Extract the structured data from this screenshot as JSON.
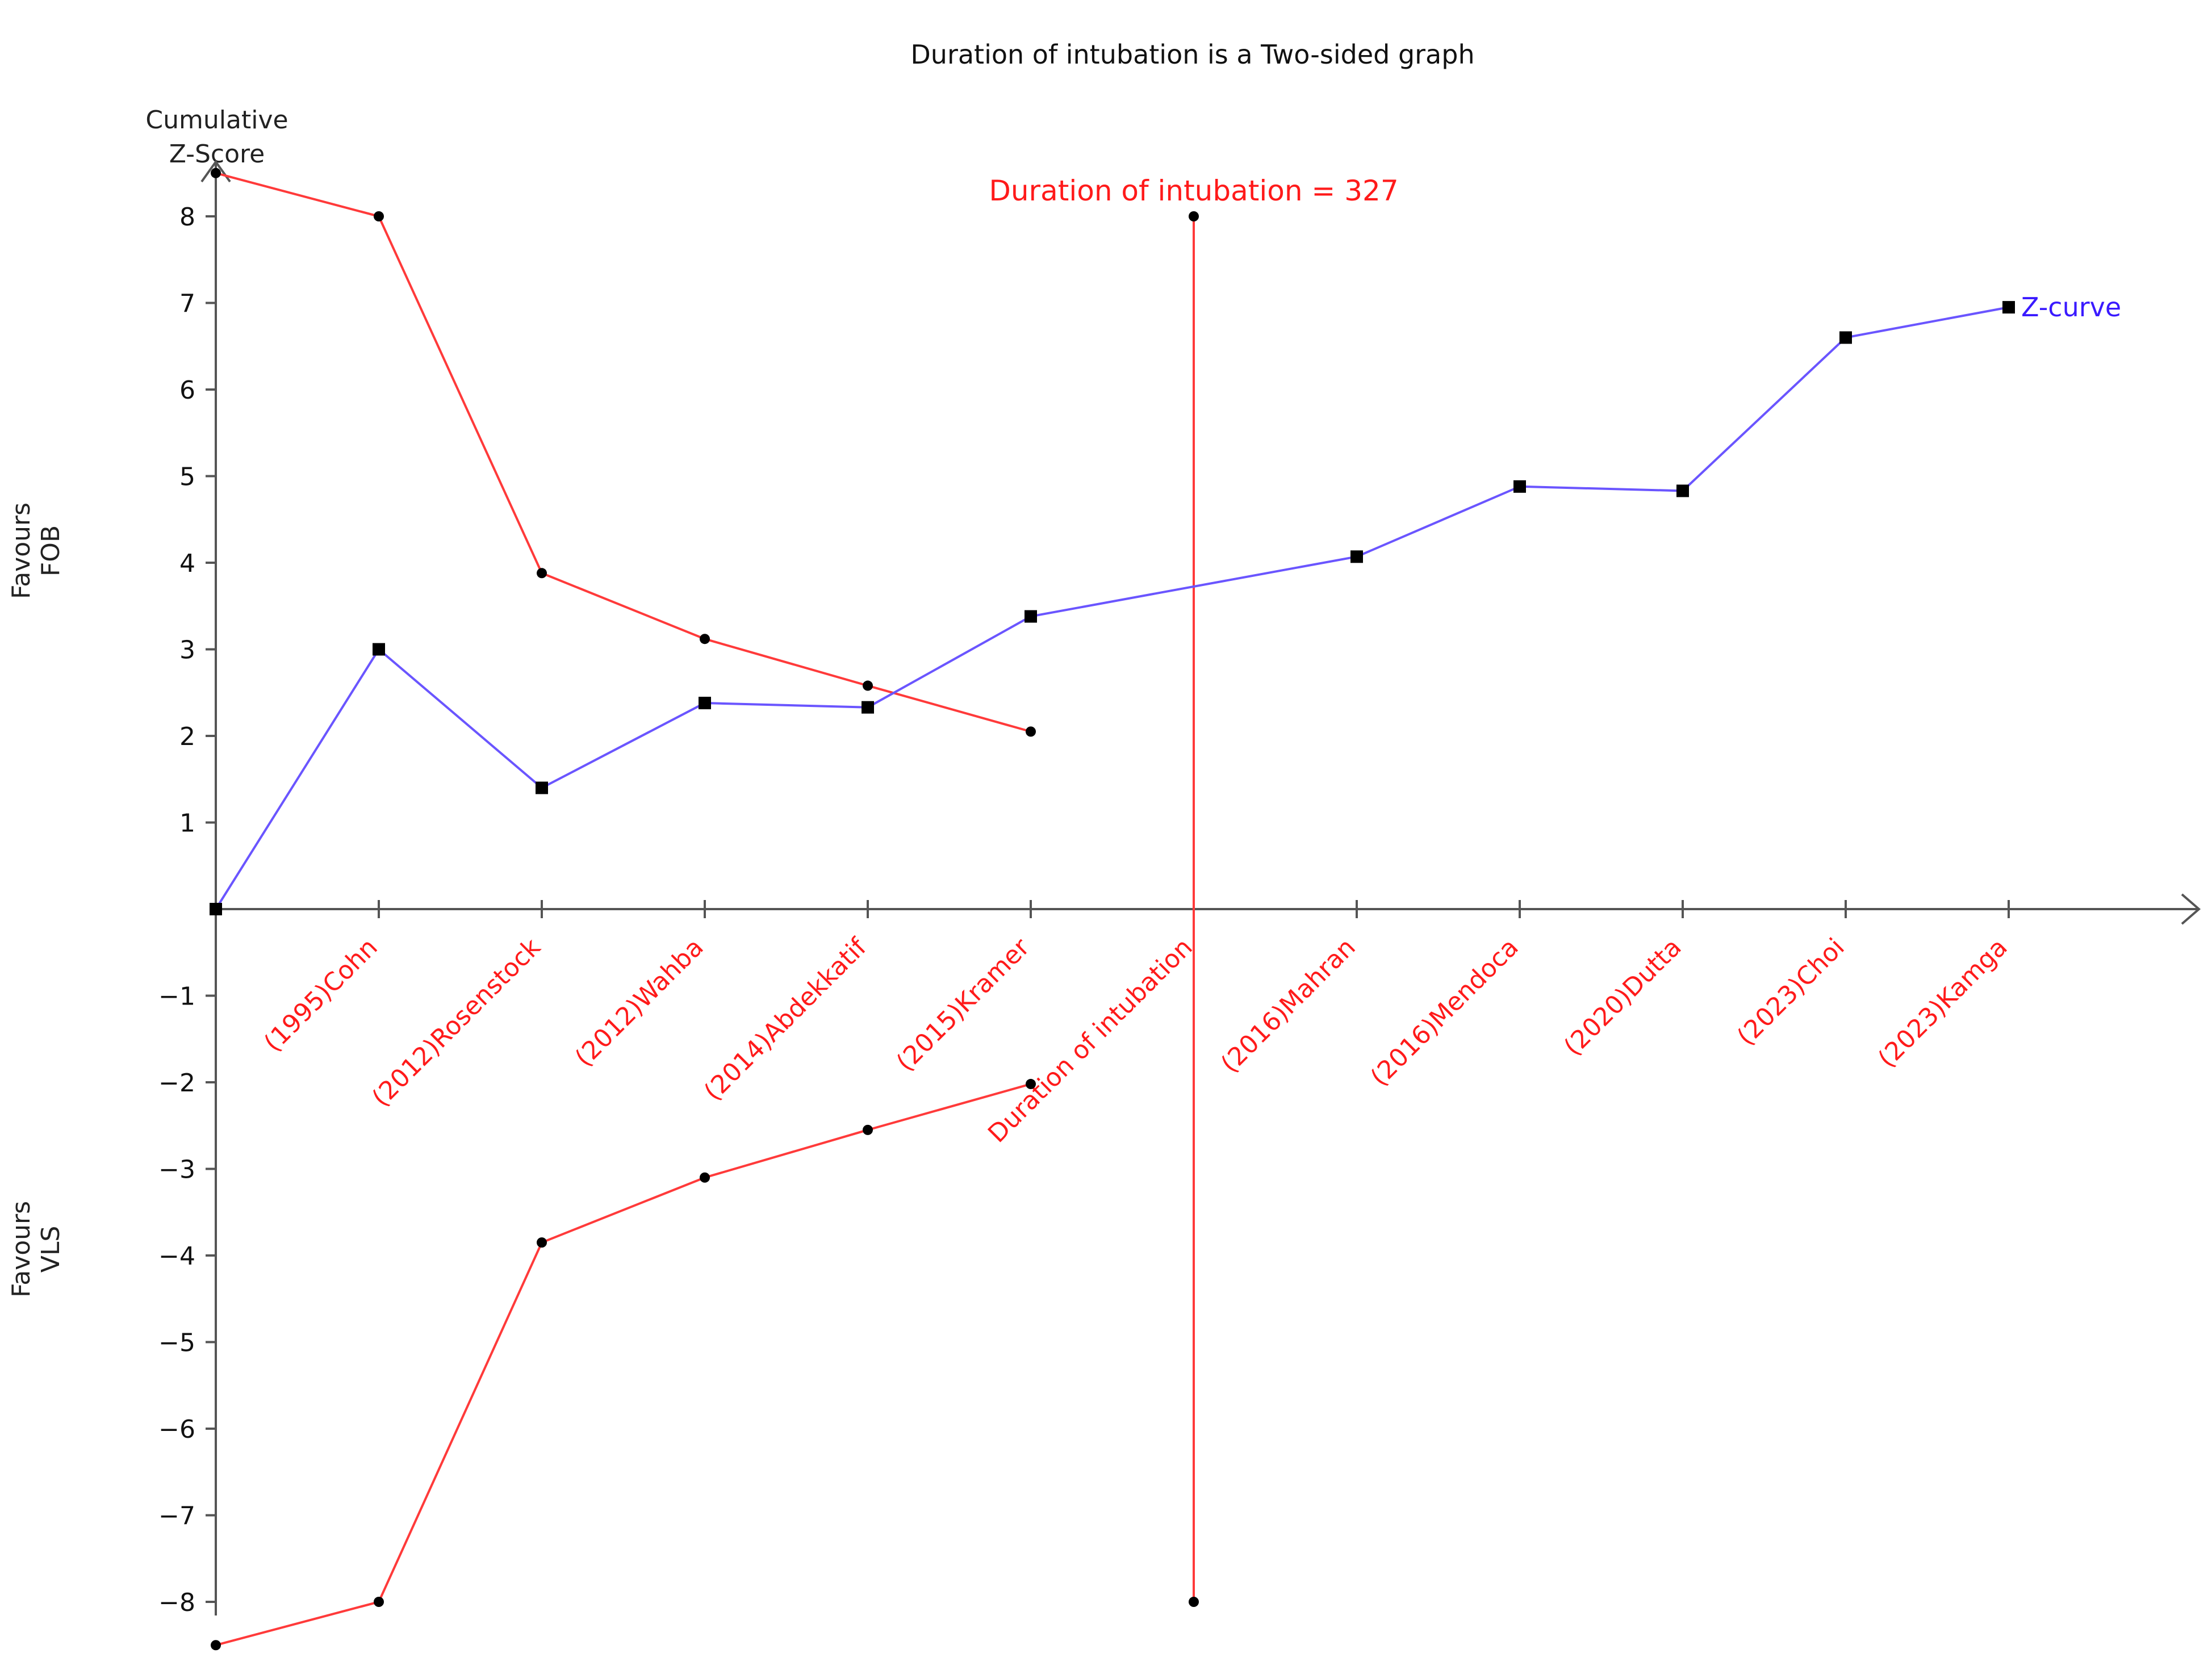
{
  "chart_data": {
    "type": "line",
    "title": "Duration of intubation is a Two-sided graph",
    "ylabel": "Cumulative Z-Score",
    "ylabel_line1": "Cumulative",
    "ylabel_line2": "Z-Score",
    "side_labels": {
      "top_line1": "Favours",
      "top_line2": "FOB",
      "bottom_line1": "Favours",
      "bottom_line2": "VLS"
    },
    "ylim": [
      -8.5,
      8.5
    ],
    "yticks": [
      8,
      7,
      6,
      5,
      4,
      3,
      2,
      1,
      -1,
      -2,
      -3,
      -4,
      -5,
      -6,
      -7,
      -8
    ],
    "categories": [
      "(1995)Cohn",
      "(2012)Rosenstock",
      "(2012)Wahba",
      "(2014)Abdekkatif",
      "(2015)Kramer",
      "Duration of intubation",
      "(2016)Mahran",
      "(2016)Mendoca",
      "(2020)Dutta",
      "(2023)Choi",
      "(2023)Kamga"
    ],
    "required_information_size": {
      "label": "Duration of intubation = 327",
      "position": 6,
      "ymin": -8,
      "ymax": 8
    },
    "z_curve": {
      "name": "Z-curve",
      "points": [
        [
          0,
          0
        ],
        [
          1,
          3.0
        ],
        [
          2,
          1.4
        ],
        [
          3,
          2.38
        ],
        [
          4,
          2.33
        ],
        [
          5,
          3.38
        ],
        [
          7,
          4.07
        ],
        [
          8,
          4.88
        ],
        [
          9,
          4.83
        ],
        [
          10,
          6.6
        ],
        [
          11,
          6.95
        ]
      ]
    },
    "upper_boundary": {
      "points": [
        [
          0,
          8.5
        ],
        [
          1,
          8.0
        ],
        [
          2,
          3.88
        ],
        [
          3,
          3.12
        ],
        [
          4,
          2.58
        ],
        [
          5,
          2.05
        ]
      ]
    },
    "lower_boundary": {
      "points": [
        [
          0,
          -8.5
        ],
        [
          1,
          -8.0
        ],
        [
          2,
          -3.85
        ],
        [
          3,
          -3.1
        ],
        [
          4,
          -2.55
        ],
        [
          5,
          -2.02
        ]
      ]
    },
    "colors": {
      "z_curve": "#6a55ff",
      "boundary": "#ff3a3a",
      "ris_line": "#ff3a3a",
      "label_red": "#ff1a1a",
      "label_blue": "#3a1aff",
      "axis": "#555555"
    }
  }
}
